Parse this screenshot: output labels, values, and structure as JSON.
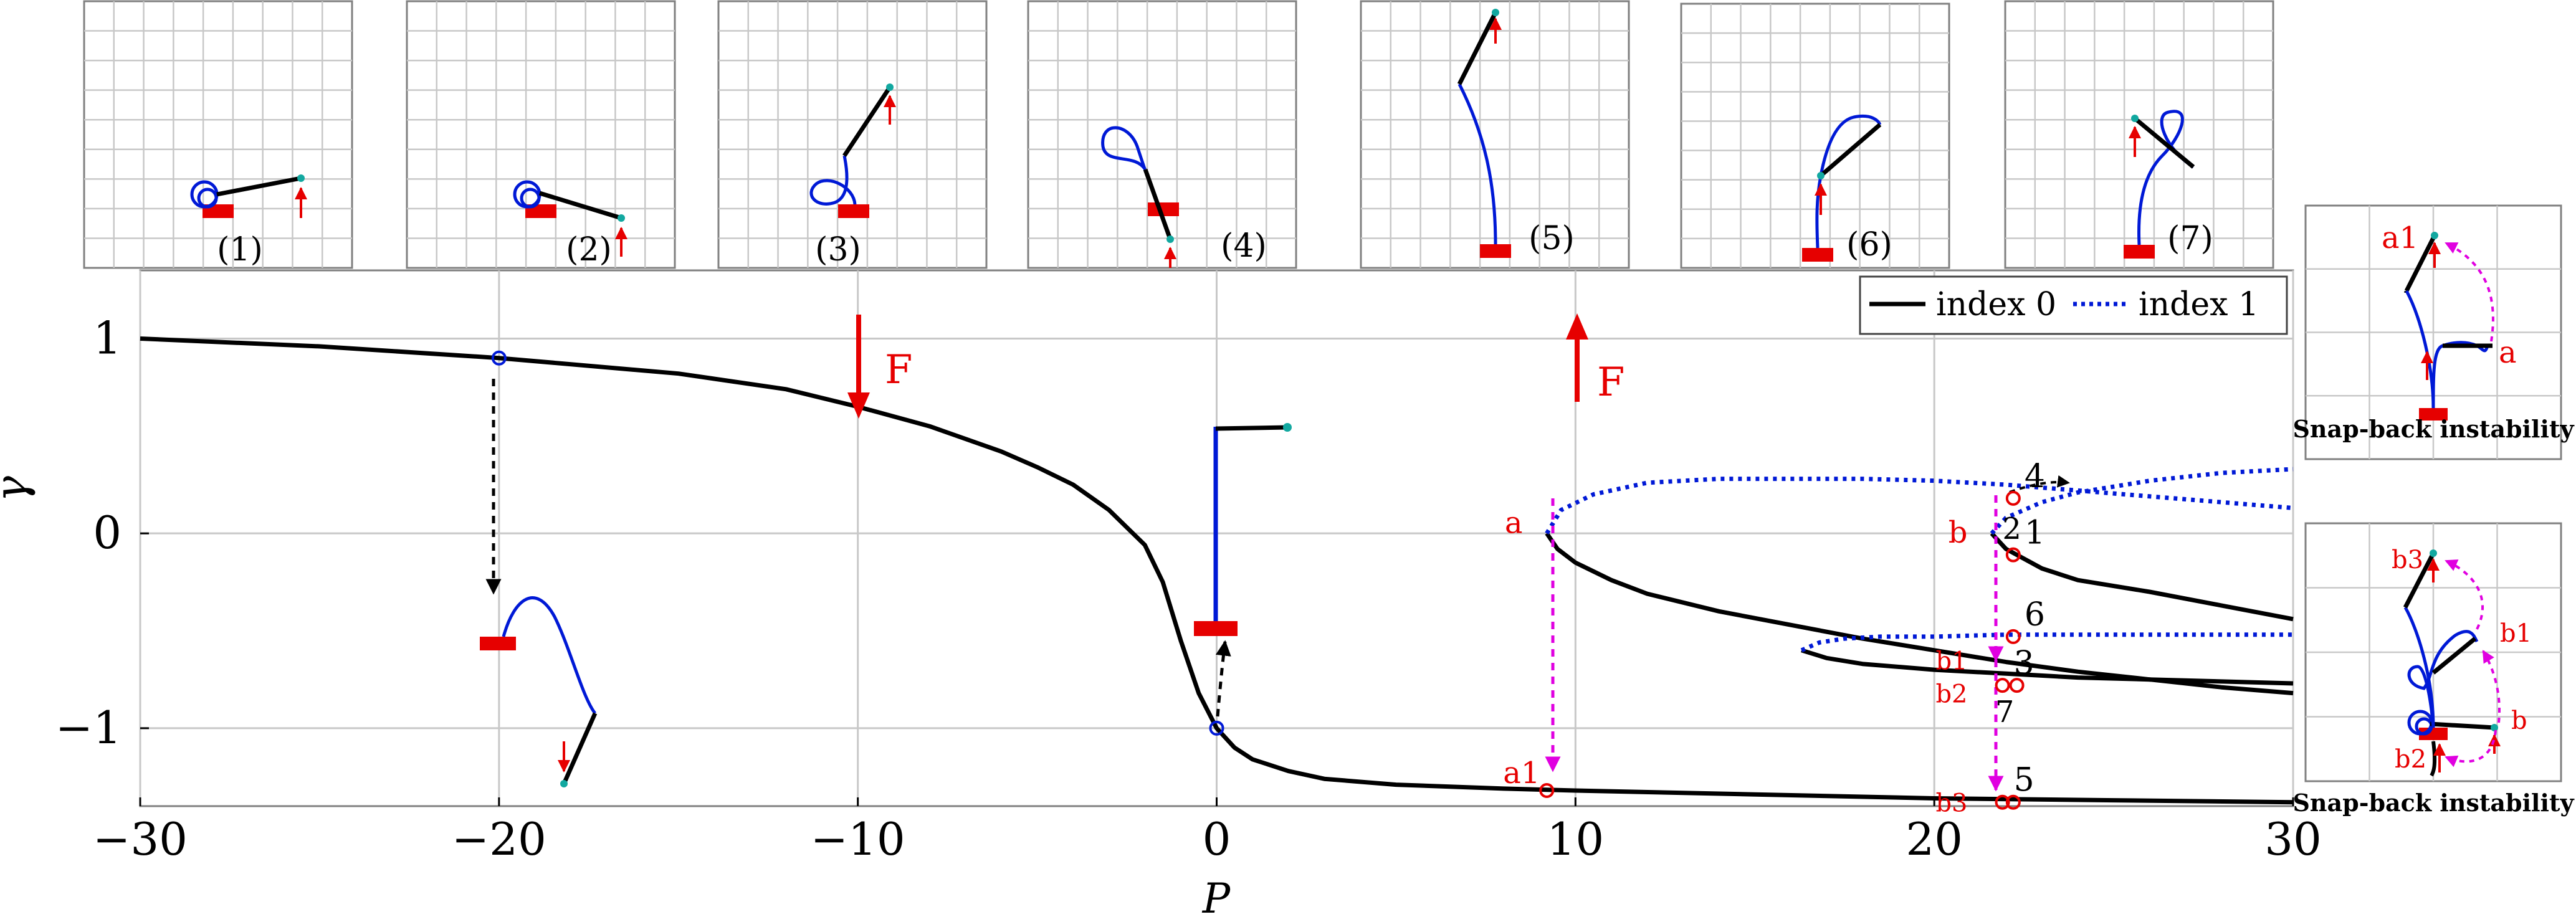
{
  "colors": {
    "index0": "#000000",
    "index1": "#0019d6",
    "force": "#e60000",
    "transition": "#e000e0",
    "joint": "#12a8a0",
    "grid": "#c8c8c8",
    "transition_black": "#000000"
  },
  "chart_data": {
    "type": "line",
    "xlabel": "P",
    "ylabel": "γ",
    "xlim": [
      -30,
      30
    ],
    "ylim": [
      -1.4,
      1.35
    ],
    "xticks": [
      -30,
      -20,
      -10,
      0,
      10,
      20,
      30
    ],
    "xtick_labels": [
      "−30",
      "−20",
      "−10",
      "0",
      "10",
      "20",
      "30"
    ],
    "yticks": [
      1,
      0,
      -1
    ],
    "ytick_labels": [
      "1",
      "0",
      "−1"
    ],
    "grid": true,
    "legend": {
      "position": "top-right",
      "entries": [
        {
          "label": "index 0",
          "style": "solid",
          "color": "#000000"
        },
        {
          "label": "index 1",
          "style": "dotted",
          "color": "#0019d6"
        }
      ]
    },
    "series": [
      {
        "index": 0,
        "style": "solid",
        "x": [
          -30,
          -25,
          -20,
          -15,
          -12,
          -10,
          -8,
          -6,
          -5,
          -4,
          -3,
          -2,
          -1.5,
          -1,
          -0.5,
          0,
          0.5,
          1,
          2,
          3,
          5,
          8,
          10,
          15,
          20,
          25,
          30
        ],
        "y": [
          1.0,
          0.96,
          0.9,
          0.82,
          0.74,
          0.65,
          0.55,
          0.42,
          0.34,
          0.25,
          0.12,
          -0.06,
          -0.25,
          -0.55,
          -0.82,
          -1.0,
          -1.1,
          -1.16,
          -1.22,
          -1.26,
          -1.29,
          -1.31,
          -1.32,
          -1.34,
          -1.36,
          -1.37,
          -1.38
        ]
      },
      {
        "index": 0,
        "style": "solid",
        "x": [
          9.2,
          9.5,
          10,
          11,
          12,
          14,
          16,
          18,
          20,
          22,
          24,
          26,
          28,
          30
        ],
        "y": [
          0.0,
          -0.08,
          -0.15,
          -0.24,
          -0.31,
          -0.4,
          -0.47,
          -0.54,
          -0.6,
          -0.66,
          -0.71,
          -0.75,
          -0.79,
          -0.82
        ]
      },
      {
        "index": 1,
        "style": "dotted",
        "x": [
          9.2,
          9.6,
          10.5,
          12,
          14,
          16,
          18,
          20,
          22,
          24,
          26,
          28,
          30
        ],
        "y": [
          0.0,
          0.12,
          0.2,
          0.26,
          0.28,
          0.28,
          0.28,
          0.27,
          0.25,
          0.22,
          0.19,
          0.16,
          0.13
        ]
      },
      {
        "index": 0,
        "style": "solid",
        "x": [
          21.6,
          22,
          23,
          24,
          26,
          28,
          30
        ],
        "y": [
          0.0,
          -0.08,
          -0.18,
          -0.24,
          -0.3,
          -0.37,
          -0.44
        ]
      },
      {
        "index": 1,
        "style": "dotted",
        "x": [
          21.6,
          22,
          23,
          24,
          26,
          28,
          30
        ],
        "y": [
          0.0,
          0.08,
          0.16,
          0.21,
          0.27,
          0.31,
          0.33
        ]
      },
      {
        "index": 0,
        "style": "solid",
        "x": [
          16.3,
          17,
          18,
          20,
          22,
          24,
          26,
          28,
          30
        ],
        "y": [
          -0.6,
          -0.64,
          -0.67,
          -0.7,
          -0.72,
          -0.74,
          -0.75,
          -0.76,
          -0.77
        ]
      },
      {
        "index": 1,
        "style": "dotted",
        "x": [
          16.3,
          16.8,
          17.5,
          18.5,
          20,
          22,
          24,
          26,
          28,
          30
        ],
        "y": [
          -0.6,
          -0.56,
          -0.54,
          -0.53,
          -0.53,
          -0.52,
          -0.52,
          -0.52,
          -0.52,
          -0.52
        ]
      }
    ],
    "markers": [
      {
        "x": -20,
        "y": 0.9,
        "color": "#0019d6",
        "label": ""
      },
      {
        "x": 0,
        "y": -1.0,
        "color": "#0019d6",
        "label": ""
      },
      {
        "x": 9.2,
        "y": -1.32,
        "color": "#e60000",
        "label": "a1"
      },
      {
        "x": 22.2,
        "y": 0.18,
        "color": "#e60000",
        "label": "4"
      },
      {
        "x": 22.2,
        "y": -0.11,
        "color": "#e60000",
        "label": "1"
      },
      {
        "x": 22.2,
        "y": -0.53,
        "color": "#e60000",
        "label": "6"
      },
      {
        "x": 21.9,
        "y": -0.78,
        "color": "#e60000",
        "label": "3"
      },
      {
        "x": 22.3,
        "y": -0.78,
        "color": "#e60000",
        "label": ""
      },
      {
        "x": 21.9,
        "y": -1.38,
        "color": "#e60000",
        "label": "5"
      },
      {
        "x": 22.2,
        "y": -1.38,
        "color": "#e60000",
        "label": ""
      }
    ],
    "point_labels": [
      {
        "x": 8.7,
        "y": 0.05,
        "text": "a",
        "color": "#e60000"
      },
      {
        "x": 21.1,
        "y": 0.0,
        "text": "b",
        "color": "#e60000"
      },
      {
        "x": 22.6,
        "y": 0.02,
        "text": "2",
        "color": "#000000"
      },
      {
        "x": 21.1,
        "y": -0.65,
        "text": "b1",
        "color": "#e60000"
      },
      {
        "x": 21.1,
        "y": -0.82,
        "text": "b2",
        "color": "#e60000"
      },
      {
        "x": 22.4,
        "y": -0.92,
        "text": "7",
        "color": "#000000"
      },
      {
        "x": 21.1,
        "y": -1.38,
        "text": "b3",
        "color": "#e60000"
      }
    ],
    "force_labels": [
      {
        "x": -10,
        "direction": "down",
        "text": "F"
      },
      {
        "x": 10,
        "direction": "up",
        "text": "F"
      }
    ]
  },
  "panels": {
    "top": [
      "(1)",
      "(2)",
      "(3)",
      "(4)",
      "(5)",
      "(6)",
      "(7)"
    ],
    "right": [
      {
        "caption": "Snap-back instability",
        "labels": [
          "a1",
          "a"
        ]
      },
      {
        "caption": "Snap-back instability",
        "labels": [
          "b3",
          "b1",
          "b",
          "b2"
        ]
      }
    ]
  }
}
